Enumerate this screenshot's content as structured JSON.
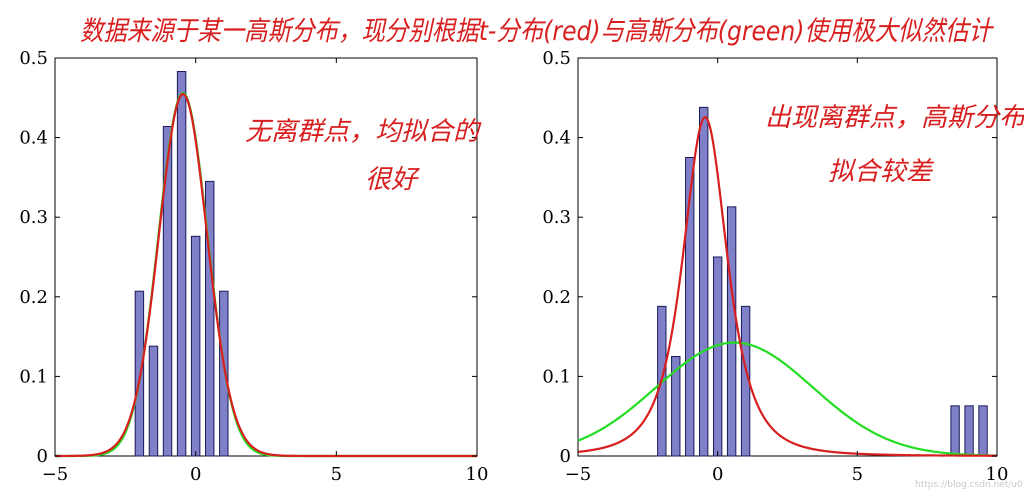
{
  "annotation_title": "数据来源于某一高斯分布，现分别根据t-分布(red)与高斯分布(green)使用极大似然估计",
  "watermark": "https://blog.csdn.net/u01108071",
  "colors": {
    "bar_fill": "#8080c8",
    "bar_stroke": "#1a1a5a",
    "t_dist_line": "#d81e1e",
    "gaussian_line": "#22dd22",
    "annotation": "#d81e1e"
  },
  "chart_data": [
    {
      "type": "bar",
      "annotation": [
        "无离群点，均拟合的",
        "很好"
      ],
      "xlim": [
        -5,
        10
      ],
      "ylim": [
        0,
        0.5
      ],
      "xticks": [
        "−5",
        "0",
        "5",
        "10"
      ],
      "yticks": [
        "0",
        "0.1",
        "0.2",
        "0.3",
        "0.4",
        "0.5"
      ],
      "bar_width": 0.3,
      "bars": {
        "x": [
          -2.0,
          -1.5,
          -1.0,
          -0.5,
          0.0,
          0.5,
          1.0
        ],
        "values": [
          0.207,
          0.138,
          0.414,
          0.483,
          0.276,
          0.345,
          0.207
        ]
      },
      "series": [
        {
          "name": "red",
          "type": "line",
          "dist": "t",
          "mu": -0.45,
          "sigma": 0.87,
          "nu": 30,
          "color": "#d81e1e"
        },
        {
          "name": "green",
          "type": "line",
          "dist": "normal",
          "mu": -0.45,
          "sigma": 0.875,
          "color": "#22dd22"
        }
      ]
    },
    {
      "type": "bar",
      "annotation": [
        "出现离群点，高斯分布",
        "拟合较差"
      ],
      "xlim": [
        -5,
        10
      ],
      "ylim": [
        0,
        0.5
      ],
      "xticks": [
        "−5",
        "0",
        "5",
        "10"
      ],
      "yticks": [
        "0",
        "0.1",
        "0.2",
        "0.3",
        "0.4",
        "0.5"
      ],
      "bar_width": 0.3,
      "bars": {
        "x": [
          -2.0,
          -1.5,
          -1.0,
          -0.5,
          0.0,
          0.5,
          1.0,
          8.5,
          9.0,
          9.5
        ],
        "values": [
          0.188,
          0.125,
          0.375,
          0.438,
          0.25,
          0.313,
          0.188,
          0.063,
          0.063,
          0.063
        ]
      },
      "series": [
        {
          "name": "red",
          "type": "line",
          "dist": "t",
          "mu": -0.45,
          "sigma": 0.85,
          "nu": 2.5,
          "color": "#d81e1e"
        },
        {
          "name": "green",
          "type": "line",
          "dist": "normal",
          "mu": 0.6,
          "sigma": 2.8,
          "color": "#22dd22"
        }
      ]
    }
  ]
}
